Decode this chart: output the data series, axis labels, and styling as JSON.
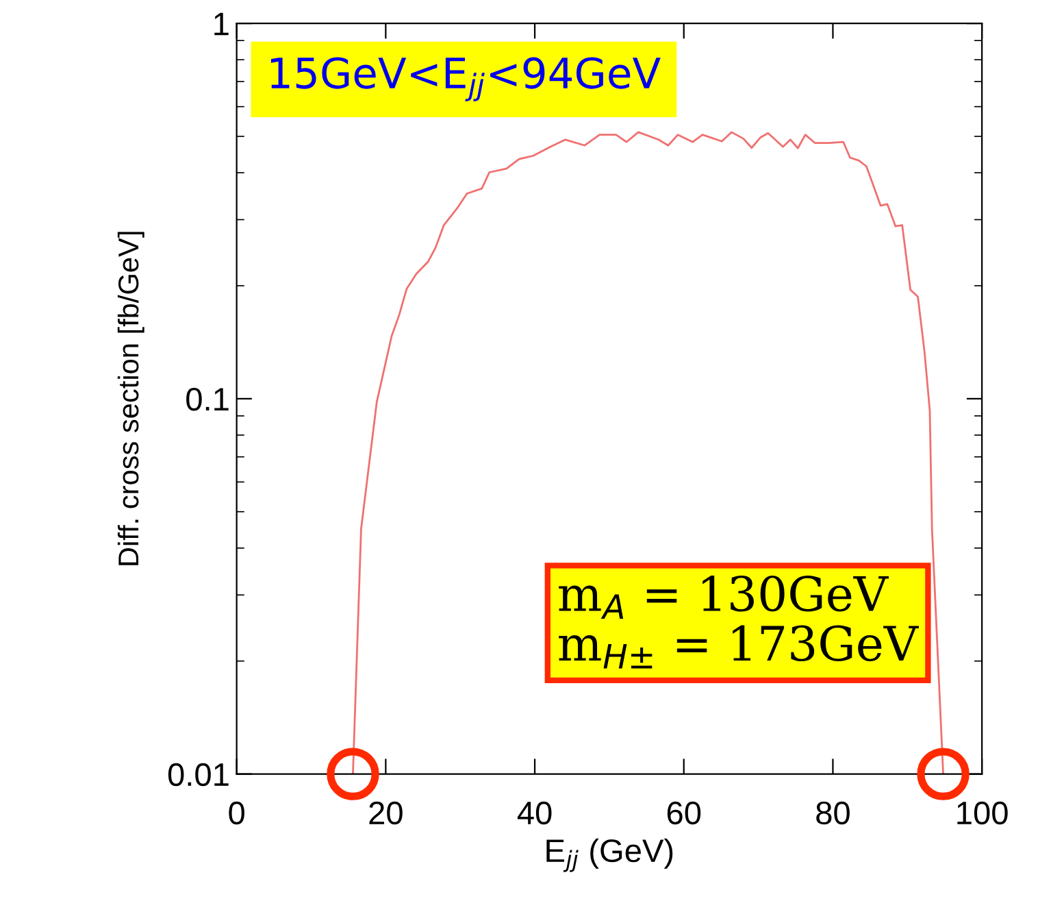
{
  "chart_data": {
    "type": "line",
    "xlabel": "E$_{jj}$ (GeV)",
    "ylabel": "Diff. cross section [fb/GeV]",
    "annotations": [
      "15GeV<E$_{jj}$<94GeV",
      "m$_{A}$ = 130GeV\nm$_{H±}$ = 173GeV"
    ],
    "log": "y",
    "grid": false,
    "marker": "none",
    "line_style": "solid",
    "xlim": [
      0,
      100
    ],
    "xticks": [
      0,
      20,
      40,
      60,
      80,
      100
    ],
    "ylim": [
      0.01,
      1
    ],
    "yticks": [
      0.01,
      0.1,
      1
    ],
    "series": [
      {
        "color": "#f07070",
        "x": [
          15.6,
          16.7,
          18.8,
          20.8,
          21.8,
          22.8,
          24.1,
          25.7,
          26.7,
          27.8,
          29.6,
          30.9,
          32.9,
          33.9,
          36.2,
          37.9,
          39.8,
          42.1,
          44.1,
          46.7,
          48.7,
          50.9,
          52.3,
          53.9,
          56.6,
          57.9,
          59.2,
          61.2,
          62.5,
          65.1,
          66.4,
          68.0,
          69.1,
          70.3,
          71.3,
          73.3,
          74.3,
          75.3,
          76.3,
          77.6,
          79.5,
          81.4,
          82.3,
          83.5,
          84.5,
          86.4,
          87.3,
          88.4,
          89.3,
          90.4,
          91.4,
          92.3,
          93.0,
          93.3,
          94.8
        ],
        "values": [
          0.01,
          0.045,
          0.098,
          0.147,
          0.167,
          0.196,
          0.215,
          0.232,
          0.253,
          0.29,
          0.322,
          0.352,
          0.363,
          0.401,
          0.41,
          0.435,
          0.444,
          0.469,
          0.49,
          0.473,
          0.505,
          0.505,
          0.483,
          0.513,
          0.49,
          0.473,
          0.505,
          0.483,
          0.505,
          0.485,
          0.513,
          0.493,
          0.466,
          0.497,
          0.51,
          0.469,
          0.49,
          0.465,
          0.505,
          0.48,
          0.48,
          0.483,
          0.439,
          0.431,
          0.416,
          0.327,
          0.33,
          0.288,
          0.29,
          0.195,
          0.187,
          0.133,
          0.093,
          0.045,
          0.01
        ]
      }
    ]
  }
}
